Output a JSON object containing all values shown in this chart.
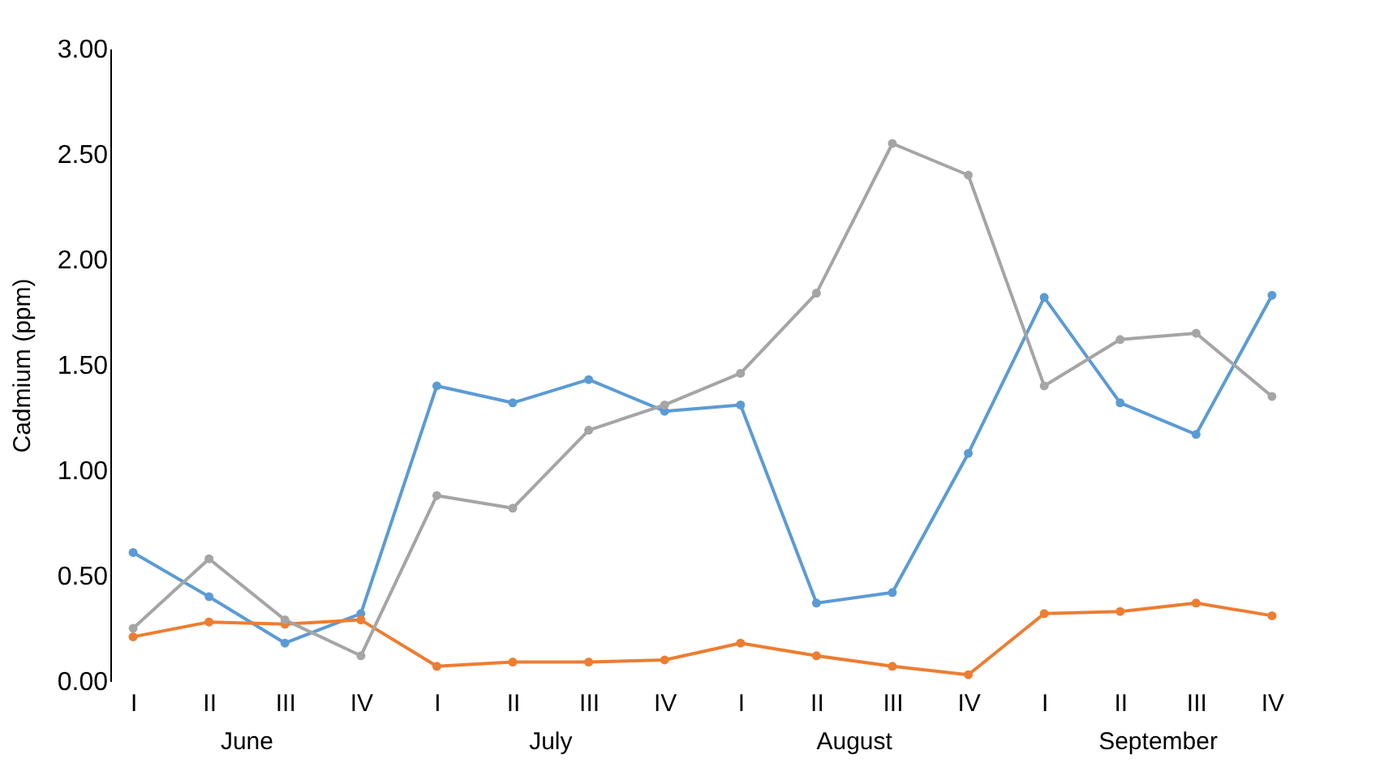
{
  "chart_data": {
    "type": "line",
    "ylabel": "Cadmium (ppm)",
    "categories": [
      "I",
      "II",
      "III",
      "IV",
      "I",
      "II",
      "III",
      "IV",
      "I",
      "II",
      "III",
      "IV",
      "I",
      "II",
      "III",
      "IV"
    ],
    "annotations": [
      "June",
      "July",
      "August",
      "September"
    ],
    "series": [
      {
        "color": "#5b9bd5",
        "values": [
          0.61,
          0.4,
          0.18,
          0.32,
          1.4,
          1.32,
          1.43,
          1.28,
          1.31,
          0.37,
          0.42,
          1.08,
          1.82,
          1.32,
          1.17,
          1.83
        ]
      },
      {
        "color": "#ed7d31",
        "values": [
          0.21,
          0.28,
          0.27,
          0.29,
          0.07,
          0.09,
          0.09,
          0.1,
          0.18,
          0.12,
          0.07,
          0.03,
          0.32,
          0.33,
          0.37,
          0.31
        ]
      },
      {
        "color": "#a5a5a5",
        "values": [
          0.25,
          0.58,
          0.29,
          0.12,
          0.88,
          0.82,
          1.19,
          1.31,
          1.46,
          1.84,
          2.55,
          2.4,
          1.4,
          1.62,
          1.65,
          1.35
        ]
      }
    ],
    "ylim": [
      0,
      3
    ],
    "yticks": [
      {
        "value": 0,
        "label": "0.00"
      },
      {
        "value": 0.5,
        "label": "0.50"
      },
      {
        "value": 1,
        "label": "1.00"
      },
      {
        "value": 1.5,
        "label": "1.50"
      },
      {
        "value": 2,
        "label": "2.00"
      },
      {
        "value": 2.5,
        "label": "2.50"
      },
      {
        "value": 3,
        "label": "3.00"
      }
    ],
    "grid": false,
    "legend": false,
    "marker": "circle",
    "line_style": "solid"
  }
}
